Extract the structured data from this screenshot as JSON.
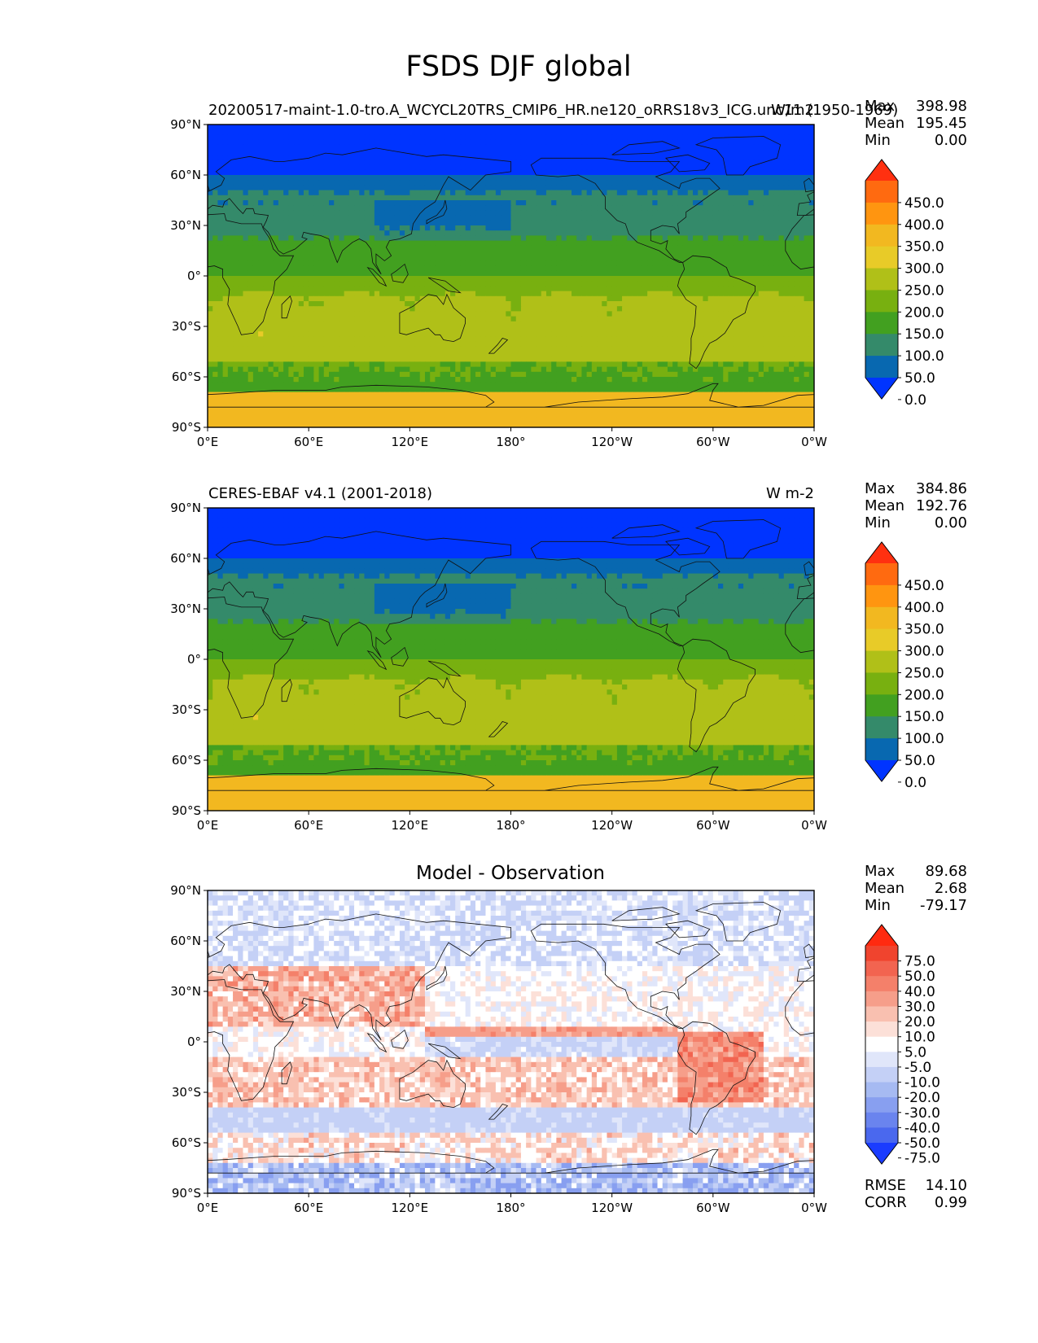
{
  "figure": {
    "title": "FSDS DJF global",
    "lat_ticks": [
      "90°N",
      "60°N",
      "30°N",
      "0°",
      "30°S",
      "60°S",
      "90°S"
    ],
    "lon_ticks": [
      "0°E",
      "60°E",
      "120°E",
      "180°",
      "120°W",
      "60°W",
      "0°W"
    ]
  },
  "panels": [
    {
      "left_title": "20200517-maint-1.0-tro.A_WCYCL20TRS_CMIP6_HR.ne120_oRRS18v3_ICG.unc11 (1950-1969)",
      "right_title": "W/m2",
      "center_title": "",
      "stats": {
        "max_label": "Max",
        "max": "398.98",
        "mean_label": "Mean",
        "mean": "195.45",
        "min_label": "Min",
        "min": "0.00"
      },
      "colorbar": {
        "labels": [
          "450.0",
          "400.0",
          "350.0",
          "300.0",
          "250.0",
          "200.0",
          "150.0",
          "100.0",
          "50.0",
          "0.0"
        ],
        "colors": [
          "#ff3010",
          "#ff6a10",
          "#ff9510",
          "#f2b820",
          "#e8cb28",
          "#b0c018",
          "#78b010",
          "#42a020",
          "#348a6a",
          "#0868b0",
          "#0034ff"
        ]
      },
      "field": "model"
    },
    {
      "left_title": "CERES-EBAF v4.1 (2001-2018)",
      "right_title": "W m-2",
      "center_title": "",
      "stats": {
        "max_label": "Max",
        "max": "384.86",
        "mean_label": "Mean",
        "mean": "192.76",
        "min_label": "Min",
        "min": "0.00"
      },
      "colorbar": {
        "labels": [
          "450.0",
          "400.0",
          "350.0",
          "300.0",
          "250.0",
          "200.0",
          "150.0",
          "100.0",
          "50.0",
          "0.0"
        ],
        "colors": [
          "#ff3010",
          "#ff6a10",
          "#ff9510",
          "#f2b820",
          "#e8cb28",
          "#b0c018",
          "#78b010",
          "#42a020",
          "#348a6a",
          "#0868b0",
          "#0034ff"
        ]
      },
      "field": "obs"
    },
    {
      "left_title": "",
      "right_title": "",
      "center_title": "Model - Observation",
      "stats": {
        "max_label": "Max",
        "max": "89.68",
        "mean_label": "Mean",
        "mean": "2.68",
        "min_label": "Min",
        "min": "-79.17"
      },
      "colorbar": {
        "labels": [
          "75.0",
          "50.0",
          "40.0",
          "30.0",
          "20.0",
          "10.0",
          "5.0",
          "-5.0",
          "-10.0",
          "-20.0",
          "-30.0",
          "-40.0",
          "-50.0",
          "-75.0"
        ],
        "colors": [
          "#ff2a10",
          "#f0442e",
          "#f26450",
          "#f4806a",
          "#f69e8a",
          "#f9c0b0",
          "#fce0d8",
          "#ffffff",
          "#e0e6fa",
          "#c4d0f6",
          "#a6baf2",
          "#889ff0",
          "#6a84ee",
          "#4a68ee",
          "#1a3cff"
        ]
      },
      "extra_stats": {
        "rmse_label": "RMSE",
        "rmse": "14.10",
        "corr_label": "CORR",
        "corr": "0.99"
      },
      "field": "diff"
    }
  ]
}
